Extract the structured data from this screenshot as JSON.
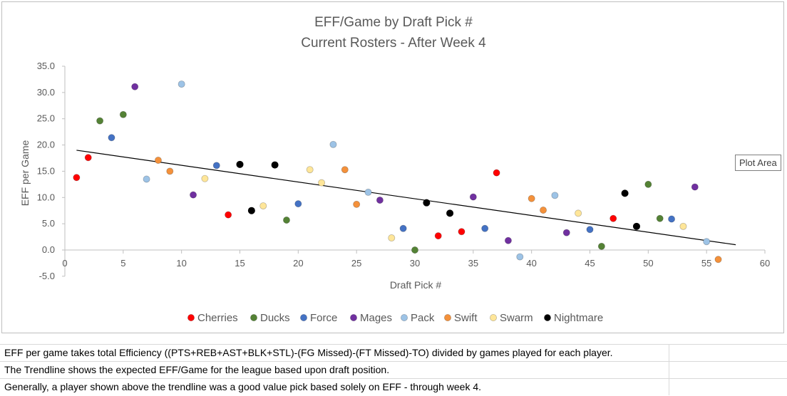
{
  "chart_data": {
    "type": "scatter",
    "title": [
      "EFF/Game by Draft Pick #",
      "Current Rosters - After Week 4"
    ],
    "xlabel": "Draft Pick #",
    "ylabel": "EFF per Game",
    "xlim": [
      0,
      60
    ],
    "ylim": [
      -5,
      35
    ],
    "x_ticks": [
      0,
      5,
      10,
      15,
      20,
      25,
      30,
      35,
      40,
      45,
      50,
      55,
      60
    ],
    "y_ticks": [
      "-5.0",
      "0.0",
      "5.0",
      "10.0",
      "15.0",
      "20.0",
      "25.0",
      "30.0",
      "35.0"
    ],
    "grid": false,
    "legend_position": "bottom",
    "trendline": {
      "x": [
        1,
        57.5
      ],
      "y": [
        19.0,
        1.0
      ]
    },
    "series": [
      {
        "name": "Cherries",
        "color": "#ff0000",
        "points": [
          [
            1,
            13.8
          ],
          [
            2,
            17.6
          ],
          [
            14,
            6.7
          ],
          [
            32,
            2.7
          ],
          [
            34,
            3.5
          ],
          [
            37,
            14.7
          ],
          [
            47,
            6.0
          ]
        ]
      },
      {
        "name": "Ducks",
        "color": "#548235",
        "points": [
          [
            3,
            24.6
          ],
          [
            5,
            25.8
          ],
          [
            19,
            5.7
          ],
          [
            30,
            0.0
          ],
          [
            46,
            0.7
          ],
          [
            50,
            12.5
          ],
          [
            51,
            6.0
          ]
        ]
      },
      {
        "name": "Force",
        "color": "#4472c4",
        "points": [
          [
            4,
            21.4
          ],
          [
            13,
            16.1
          ],
          [
            20,
            8.8
          ],
          [
            29,
            4.1
          ],
          [
            36,
            4.1
          ],
          [
            45,
            3.9
          ],
          [
            52,
            5.9
          ]
        ]
      },
      {
        "name": "Mages",
        "color": "#7030a0",
        "points": [
          [
            6,
            31.1
          ],
          [
            11,
            10.5
          ],
          [
            27,
            9.5
          ],
          [
            35,
            10.1
          ],
          [
            38,
            1.8
          ],
          [
            43,
            3.3
          ],
          [
            54,
            12.0
          ]
        ]
      },
      {
        "name": "Pack",
        "color": "#9dc3e6",
        "points": [
          [
            7,
            13.5
          ],
          [
            10,
            31.6
          ],
          [
            23,
            20.1
          ],
          [
            26,
            11.0
          ],
          [
            39,
            -1.3
          ],
          [
            42,
            10.4
          ],
          [
            55,
            1.6
          ]
        ]
      },
      {
        "name": "Swift",
        "color": "#f4913b",
        "points": [
          [
            8,
            17.1
          ],
          [
            9,
            15.0
          ],
          [
            24,
            15.3
          ],
          [
            25,
            8.7
          ],
          [
            40,
            9.8
          ],
          [
            41,
            7.6
          ],
          [
            56,
            -1.8
          ]
        ]
      },
      {
        "name": "Swarm",
        "color": "#ffe699",
        "points": [
          [
            12,
            13.6
          ],
          [
            17,
            8.4
          ],
          [
            21,
            15.3
          ],
          [
            22,
            12.8
          ],
          [
            28,
            2.3
          ],
          [
            44,
            7.0
          ],
          [
            53,
            4.5
          ]
        ]
      },
      {
        "name": "Nightmare",
        "color": "#000000",
        "points": [
          [
            15,
            16.3
          ],
          [
            16,
            7.5
          ],
          [
            18,
            16.2
          ],
          [
            31,
            9.0
          ],
          [
            33,
            7.0
          ],
          [
            48,
            10.8
          ],
          [
            49,
            4.5
          ]
        ]
      }
    ]
  },
  "tooltip": "Plot Area",
  "notes": [
    "EFF per game takes total Efficiency ((PTS+REB+AST+BLK+STL)-(FG Missed)-(FT Missed)-TO) divided by games played for each player.",
    "The Trendline shows the expected EFF/Game for the league based upon draft position.",
    "Generally, a player shown above the trendline was a good value pick based solely on EFF - through week 4."
  ]
}
